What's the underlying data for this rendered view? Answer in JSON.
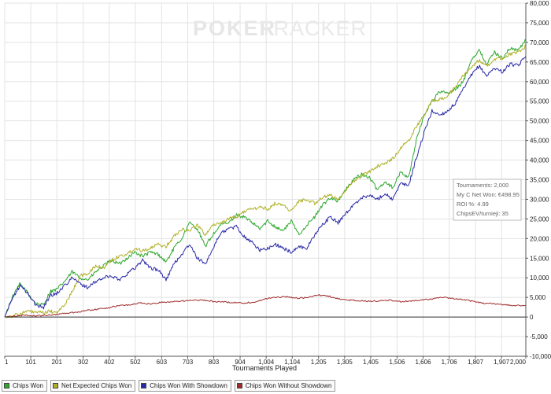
{
  "watermark": {
    "part1": "POKER",
    "part2": "TRACKER"
  },
  "colors": {
    "chips_won": "#2ea82e",
    "net_expected": "#b0b02a",
    "showdown": "#2a2aa8",
    "non_showdown": "#a02a2a",
    "grid": "#e3e3e3",
    "axis": "#555555"
  },
  "tooltip": {
    "tournaments": "Tournaments: 2,000",
    "net_won": "My C Net Won: €498.95",
    "roi": "ROI %: 4.99",
    "chipsev": "ChipsEV/turnieji: 35"
  },
  "legend": [
    {
      "label": "Chips Won",
      "color": "#2ea82e"
    },
    {
      "label": "Net Expected Chips Won",
      "color": "#b0b02a"
    },
    {
      "label": "Chips Won With Showdown",
      "color": "#2a2aa8"
    },
    {
      "label": "Chips Won Without Showdown",
      "color": "#a02a2a"
    }
  ],
  "chart_data": {
    "type": "line",
    "title": "",
    "xlabel": "Tournaments Played",
    "ylabel": "",
    "xlim": [
      1,
      2000
    ],
    "ylim": [
      -10000,
      80000
    ],
    "x_ticks": [
      "1",
      "101",
      "201",
      "302",
      "402",
      "502",
      "603",
      "703",
      "803",
      "904",
      "1,004",
      "1,104",
      "1,205",
      "1,305",
      "1,405",
      "1,506",
      "1,606",
      "1,706",
      "1,807",
      "1,907",
      "2,000"
    ],
    "x_tick_values": [
      1,
      101,
      201,
      302,
      402,
      502,
      603,
      703,
      803,
      904,
      1004,
      1104,
      1205,
      1305,
      1405,
      1506,
      1606,
      1706,
      1807,
      1907,
      2000
    ],
    "y_ticks": [
      "80,000",
      "75,000",
      "70,000",
      "65,000",
      "60,000",
      "55,000",
      "50,000",
      "45,000",
      "40,000",
      "35,000",
      "30,000",
      "25,000",
      "20,000",
      "15,000",
      "10,000",
      "5,000",
      "0",
      "-5,000",
      "-10,000"
    ],
    "y_tick_values": [
      80000,
      75000,
      70000,
      65000,
      60000,
      55000,
      50000,
      45000,
      40000,
      35000,
      30000,
      25000,
      20000,
      15000,
      10000,
      5000,
      0,
      -5000,
      -10000
    ],
    "legend_position": "bottom",
    "series": [
      {
        "name": "Chips Won",
        "color": "#2ea82e",
        "x": [
          1,
          30,
          60,
          90,
          120,
          150,
          175,
          200,
          230,
          260,
          290,
          320,
          350,
          380,
          410,
          440,
          470,
          500,
          530,
          560,
          590,
          620,
          650,
          680,
          710,
          740,
          770,
          800,
          830,
          860,
          890,
          920,
          950,
          980,
          1010,
          1040,
          1070,
          1100,
          1130,
          1160,
          1190,
          1220,
          1250,
          1280,
          1310,
          1340,
          1370,
          1400,
          1430,
          1460,
          1490,
          1520,
          1550,
          1580,
          1610,
          1640,
          1670,
          1700,
          1730,
          1760,
          1790,
          1820,
          1850,
          1880,
          1910,
          1940,
          1970,
          2000
        ],
        "y": [
          0,
          5000,
          8500,
          6000,
          3500,
          3000,
          6500,
          7000,
          9000,
          11500,
          10000,
          9500,
          11500,
          13000,
          14500,
          13500,
          15000,
          16500,
          15500,
          16500,
          16000,
          14000,
          17500,
          20000,
          24000,
          22500,
          18000,
          21000,
          23500,
          24000,
          26000,
          25500,
          24000,
          22500,
          24500,
          23000,
          22000,
          24500,
          21000,
          23500,
          25500,
          28500,
          30500,
          29500,
          32500,
          35000,
          36500,
          35500,
          32500,
          34500,
          33000,
          37000,
          35500,
          45000,
          51500,
          55000,
          57500,
          57000,
          58000,
          60000,
          65500,
          68000,
          64500,
          67500,
          66000,
          68500,
          68000,
          70500
        ]
      },
      {
        "name": "Net Expected Chips Won",
        "color": "#b0b02a",
        "x": [
          1,
          30,
          60,
          90,
          120,
          150,
          175,
          200,
          230,
          260,
          290,
          320,
          350,
          380,
          410,
          440,
          470,
          500,
          530,
          560,
          590,
          620,
          650,
          680,
          710,
          740,
          770,
          800,
          830,
          860,
          890,
          920,
          950,
          980,
          1010,
          1040,
          1070,
          1100,
          1130,
          1160,
          1190,
          1220,
          1250,
          1280,
          1310,
          1340,
          1370,
          1400,
          1430,
          1460,
          1490,
          1520,
          1550,
          1580,
          1610,
          1640,
          1670,
          1700,
          1730,
          1760,
          1790,
          1820,
          1850,
          1880,
          1910,
          1940,
          1970,
          2000
        ],
        "y": [
          0,
          300,
          800,
          1500,
          1200,
          1000,
          1500,
          1000,
          3000,
          6500,
          10500,
          11000,
          13000,
          12500,
          14500,
          15500,
          16000,
          17500,
          17000,
          17500,
          18500,
          18000,
          20500,
          22500,
          22000,
          23500,
          21000,
          23500,
          24000,
          25000,
          25500,
          27000,
          27500,
          28000,
          27500,
          29000,
          28500,
          27000,
          29500,
          30000,
          29000,
          30500,
          31000,
          30000,
          32500,
          34500,
          36000,
          37000,
          38500,
          39000,
          40500,
          43000,
          45000,
          48500,
          51500,
          55000,
          55500,
          56500,
          58500,
          61500,
          63500,
          65500,
          64000,
          65500,
          66000,
          67000,
          67500,
          69000
        ]
      },
      {
        "name": "Chips Won With Showdown",
        "color": "#2a2aa8",
        "x": [
          1,
          30,
          60,
          90,
          120,
          150,
          175,
          200,
          230,
          260,
          290,
          320,
          350,
          380,
          410,
          440,
          470,
          500,
          530,
          560,
          590,
          620,
          650,
          680,
          710,
          740,
          770,
          800,
          830,
          860,
          890,
          920,
          950,
          980,
          1010,
          1040,
          1070,
          1100,
          1130,
          1160,
          1190,
          1220,
          1250,
          1280,
          1310,
          1340,
          1370,
          1400,
          1430,
          1460,
          1490,
          1520,
          1550,
          1580,
          1610,
          1640,
          1670,
          1700,
          1730,
          1760,
          1790,
          1820,
          1850,
          1880,
          1910,
          1940,
          1970,
          2000
        ],
        "y": [
          0,
          4800,
          8000,
          6000,
          3000,
          2500,
          5500,
          6000,
          8000,
          10000,
          8500,
          7500,
          9000,
          10000,
          10500,
          9500,
          11000,
          12500,
          14500,
          12500,
          12000,
          9500,
          13500,
          16000,
          18500,
          15000,
          13500,
          17500,
          21500,
          22500,
          23000,
          20500,
          19000,
          17000,
          17500,
          18500,
          17500,
          16500,
          18000,
          17500,
          21000,
          23500,
          25500,
          24000,
          26500,
          28500,
          30500,
          31000,
          30000,
          31500,
          30000,
          34000,
          33500,
          40500,
          47000,
          52500,
          51500,
          52500,
          54500,
          58000,
          61500,
          64000,
          61500,
          63500,
          62500,
          64500,
          64000,
          66500
        ]
      },
      {
        "name": "Chips Won Without Showdown",
        "color": "#a02a2a",
        "x": [
          1,
          40,
          80,
          120,
          160,
          200,
          240,
          280,
          320,
          360,
          400,
          440,
          480,
          520,
          560,
          600,
          640,
          680,
          720,
          760,
          800,
          840,
          880,
          920,
          960,
          1000,
          1040,
          1080,
          1120,
          1160,
          1200,
          1240,
          1280,
          1320,
          1360,
          1400,
          1440,
          1480,
          1520,
          1560,
          1600,
          1640,
          1680,
          1720,
          1760,
          1800,
          1840,
          1880,
          1920,
          1960,
          2000
        ],
        "y": [
          0,
          200,
          500,
          300,
          400,
          700,
          1000,
          1300,
          1700,
          2000,
          2400,
          2900,
          3100,
          3600,
          3300,
          3700,
          3900,
          4100,
          4200,
          4300,
          4000,
          3800,
          3700,
          3600,
          3800,
          4600,
          5000,
          5200,
          4800,
          4900,
          5600,
          5400,
          4600,
          4300,
          4200,
          4000,
          4100,
          4300,
          3900,
          4100,
          4400,
          4600,
          5000,
          4700,
          4400,
          4000,
          3500,
          3400,
          3100,
          2900,
          3000
        ]
      }
    ]
  }
}
